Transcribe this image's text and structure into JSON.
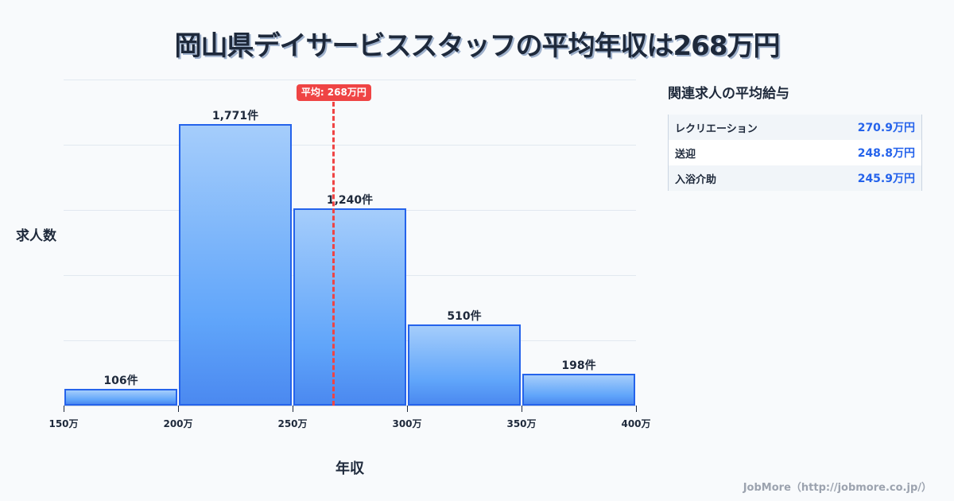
{
  "title": "岡山県デイサービススタッフの平均年収は268万円",
  "chart_data": {
    "type": "bar",
    "subtype": "histogram",
    "title": "岡山県デイサービススタッフの平均年収は268万円",
    "xlabel": "年収",
    "ylabel": "求人数",
    "categories": [
      "150-200万",
      "200-250万",
      "250-300万",
      "300-350万",
      "350-400万"
    ],
    "bin_edges": [
      150,
      200,
      250,
      300,
      350,
      400
    ],
    "x_tick_labels": [
      "150万",
      "200万",
      "250万",
      "300万",
      "350万",
      "400万"
    ],
    "values": [
      106,
      1771,
      1240,
      510,
      198
    ],
    "value_labels": [
      "106件",
      "1,771件",
      "1,240件",
      "510件",
      "198件"
    ],
    "xlim": [
      150,
      400
    ],
    "ylim": [
      0,
      2050
    ],
    "grid": true,
    "mean_marker": {
      "value": 268,
      "label": "平均: 268万円",
      "color": "#ef4444"
    },
    "bar_color": "#60a5fa",
    "bar_border_color": "#2563eb"
  },
  "axis": {
    "y_label": "求人数",
    "x_label": "年収"
  },
  "mean_badge": "平均: 268万円",
  "side_panel": {
    "title": "関連求人の平均給与",
    "rows": [
      {
        "name": "レクリエーション",
        "value": "270.9万円"
      },
      {
        "name": "送迎",
        "value": "248.8万円"
      },
      {
        "name": "入浴介助",
        "value": "245.9万円"
      }
    ]
  },
  "footer": "JobMore（http://jobmore.co.jp/）"
}
